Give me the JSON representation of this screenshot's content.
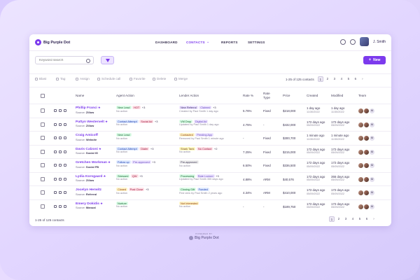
{
  "app": {
    "name": "Big Purple Dot"
  },
  "nav": {
    "items": [
      {
        "label": "DASHBOARD",
        "active": false
      },
      {
        "label": "CONTACTS",
        "active": true
      },
      {
        "label": "REPORTS",
        "active": false
      },
      {
        "label": "SETTINGS",
        "active": false
      }
    ],
    "user_name": "J. Smith"
  },
  "search": {
    "placeholder": "Keyword search"
  },
  "new_button": {
    "label": "New"
  },
  "toolbar": {
    "actions": [
      "Blast",
      "Tag",
      "Assign",
      "Schedule call",
      "Favorite",
      "Delete",
      "Merge"
    ],
    "count": "1-25 of 125 contacts",
    "pages": [
      "1",
      "2",
      "3",
      "4",
      "5",
      "6"
    ]
  },
  "columns": [
    "Name",
    "Agent Action",
    "Lender Action",
    "Rate %",
    "Rate Type",
    "Price",
    "Created",
    "Modified",
    "Team"
  ],
  "rows": [
    {
      "name": "Phillip Franci",
      "star": true,
      "source_label": "Source:",
      "source": "Zillow",
      "agent_tags": [
        {
          "t": "New Lead",
          "c": "#dcfce7",
          "f": "#166534"
        },
        {
          "t": "HOT",
          "c": "#fde2e8",
          "f": "#9f1239"
        }
      ],
      "agent_more": "+3",
      "agent_sub": "No action",
      "lender_tags": [
        {
          "t": "New Referral",
          "c": "#ede4ff",
          "f": "#3b2a6e"
        },
        {
          "t": "Claimed",
          "c": "#ede4ff",
          "f": "#6b4fc0"
        }
      ],
      "lender_more": "+3",
      "lender_sub": "Created by Paul Smith 1 day ago",
      "rate": "5.76%",
      "rate_type": "Fixed",
      "price": "$218,000",
      "created": "1 day ago",
      "created_date": "11/30/2022",
      "modified": "1 day ago",
      "modified_date": "11/30/2022"
    },
    {
      "name": "Pattyn Westervelt",
      "star": true,
      "source_label": "Source:",
      "source": "Zillow",
      "agent_tags": [
        {
          "t": "Contact Attempt",
          "c": "#e0eaff",
          "f": "#1e40af"
        },
        {
          "t": "Social Ad",
          "c": "#fde2e8",
          "f": "#9f1239"
        }
      ],
      "agent_more": "+3",
      "agent_sub": "No action",
      "lender_tags": [
        {
          "t": "VM Drop",
          "c": "#dcfce7",
          "f": "#166534"
        },
        {
          "t": "Digital Ad",
          "c": "#ede4ff",
          "f": "#6b4fc0"
        }
      ],
      "lender_more": "",
      "lender_sub": "Updated by Paul Smith 1 day ago",
      "rate": "4.75%",
      "rate_type": "-",
      "price": "$432,000",
      "created": "172 days ago",
      "created_date": "05/09/2022",
      "modified": "172 days ago",
      "modified_date": "05/09/2022"
    },
    {
      "name": "Craig Amicoff",
      "star": false,
      "source_label": "Source:",
      "source": "Website",
      "agent_tags": [
        {
          "t": "New Lead",
          "c": "#dcfce7",
          "f": "#166534"
        }
      ],
      "agent_more": "",
      "agent_sub": "No action",
      "lender_tags": [
        {
          "t": "Contacted",
          "c": "#fef3c7",
          "f": "#92400e"
        },
        {
          "t": "Pending App",
          "c": "#ede4ff",
          "f": "#6b4fc0"
        }
      ],
      "lender_more": "",
      "lender_sub": "Removed by Paul Smith 1 minute ago",
      "rate": "-",
      "rate_type": "Fixed",
      "price": "$300,700",
      "created": "1 minute ago",
      "created_date": "11/30/2022",
      "modified": "1 minute ago",
      "modified_date": "11/30/2022"
    },
    {
      "name": "Davis Calzoni",
      "star": true,
      "source_label": "Source:",
      "source": "Social IG",
      "agent_tags": [
        {
          "t": "Contact Attempt",
          "c": "#e0eaff",
          "f": "#1e40af"
        },
        {
          "t": "Dialer",
          "c": "#fde2e8",
          "f": "#9f1239"
        }
      ],
      "agent_more": "+3",
      "agent_sub": "No action",
      "lender_tags": [
        {
          "t": "Shark Tank",
          "c": "#fef9c3",
          "f": "#713f12"
        },
        {
          "t": "No Contact",
          "c": "#fde2e8",
          "f": "#9f1239"
        }
      ],
      "lender_more": "+2",
      "lender_sub": "No action",
      "rate": "7.25%",
      "rate_type": "Fixed",
      "price": "$215,000",
      "created": "172 days ago",
      "created_date": "05/09/2022",
      "modified": "172 days ago",
      "modified_date": "05/09/2022"
    },
    {
      "name": "Gretchen Workman",
      "star": true,
      "source_label": "Source:",
      "source": "Social FB",
      "agent_tags": [
        {
          "t": "Follow up",
          "c": "#e0eaff",
          "f": "#1e40af"
        },
        {
          "t": "Pre-approved",
          "c": "#ede4ff",
          "f": "#6b4fc0"
        }
      ],
      "agent_more": "+3",
      "agent_sub": "No action",
      "lender_tags": [
        {
          "t": "Pre-approved",
          "c": "#eeeeee",
          "f": "#3b3352"
        }
      ],
      "lender_more": "",
      "lender_sub": "No action",
      "rate": "6.50%",
      "rate_type": "Fixed",
      "price": "$336,500",
      "created": "172 days ago",
      "created_date": "05/09/2022",
      "modified": "172 days ago",
      "modified_date": "05/09/2022"
    },
    {
      "name": "Lydia Korsgaard",
      "star": true,
      "source_label": "Source:",
      "source": "Zillow",
      "agent_tags": [
        {
          "t": "Stressed",
          "c": "#dcfce7",
          "f": "#166534"
        },
        {
          "t": "QW",
          "c": "#fde2e8",
          "f": "#9f1239"
        }
      ],
      "agent_more": "+3",
      "agent_sub": "No action",
      "lender_tags": [
        {
          "t": "Processing",
          "c": "#dcfce7",
          "f": "#166534"
        },
        {
          "t": "Rate Locked",
          "c": "#ede4ff",
          "f": "#6b4fc0"
        }
      ],
      "lender_more": "+3",
      "lender_sub": "Updated by Paul Smith 355 days ago",
      "rate": "4.88%",
      "rate_type": "ARM",
      "price": "$40,576",
      "created": "172 days ago",
      "created_date": "05/09/2022",
      "modified": "355 days ago",
      "modified_date": "05/09/2022"
    },
    {
      "name": "Jocelyn Herwitz",
      "star": false,
      "source_label": "Source:",
      "source": "Referral",
      "agent_tags": [
        {
          "t": "Closed",
          "c": "#fef3c7",
          "f": "#92400e"
        },
        {
          "t": "Post Close",
          "c": "#fde2e8",
          "f": "#9f1239"
        }
      ],
      "agent_more": "+3",
      "agent_sub": "No action",
      "lender_tags": [
        {
          "t": "Closing Gift",
          "c": "#dcfce7",
          "f": "#166534"
        },
        {
          "t": "Funded",
          "c": "#e0eaff",
          "f": "#1e40af"
        }
      ],
      "lender_more": "",
      "lender_sub": "First view by Paul Smith 2 years ago",
      "rate": "4.34%",
      "rate_type": "ARM",
      "price": "$410,000",
      "created": "172 days ago",
      "created_date": "05/09/2022",
      "modified": "172 days ago",
      "modified_date": "05/09/2022"
    },
    {
      "name": "Emery Dokidis",
      "star": true,
      "source_label": "Source:",
      "source": "Manual",
      "agent_tags": [
        {
          "t": "Nurture",
          "c": "#dcfce7",
          "f": "#166534"
        }
      ],
      "agent_more": "",
      "agent_sub": "No action",
      "lender_tags": [
        {
          "t": "Not Interested",
          "c": "#fef3c7",
          "f": "#92400e"
        }
      ],
      "lender_more": "",
      "lender_sub": "No action",
      "rate": "-",
      "rate_type": "-",
      "price": "$189,750",
      "created": "172 days ago",
      "created_date": "05/09/2022",
      "modified": "172 days ago",
      "modified_date": "05/09/2022"
    }
  ],
  "team_more": "M",
  "footer": {
    "count": "1-25 of 125 contacts"
  },
  "powered": {
    "by": "POWERED BY",
    "brand": "Big Purple Dot"
  }
}
